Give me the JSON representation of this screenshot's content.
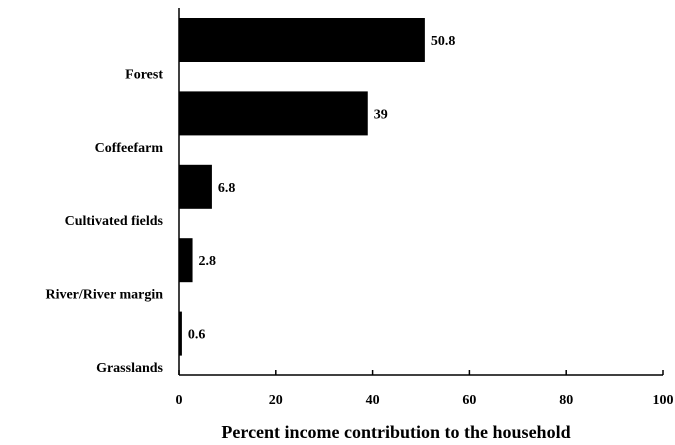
{
  "chart_data": {
    "type": "bar",
    "orientation": "horizontal",
    "categories": [
      "Forest",
      "Coffeefarm",
      "Cultivated fields",
      "River/River margin",
      "Grasslands"
    ],
    "values": [
      50.8,
      39,
      6.8,
      2.8,
      0.6
    ],
    "value_labels": [
      "50.8",
      "39",
      "6.8",
      "2.8",
      "0.6"
    ],
    "xlabel": "Percent income contribution to the household",
    "ylabel": "",
    "title": "",
    "xlim": [
      0,
      100
    ],
    "xticks": [
      "0",
      "20",
      "40",
      "60",
      "80",
      "100"
    ],
    "grid": false,
    "bar_color": "#000000"
  }
}
